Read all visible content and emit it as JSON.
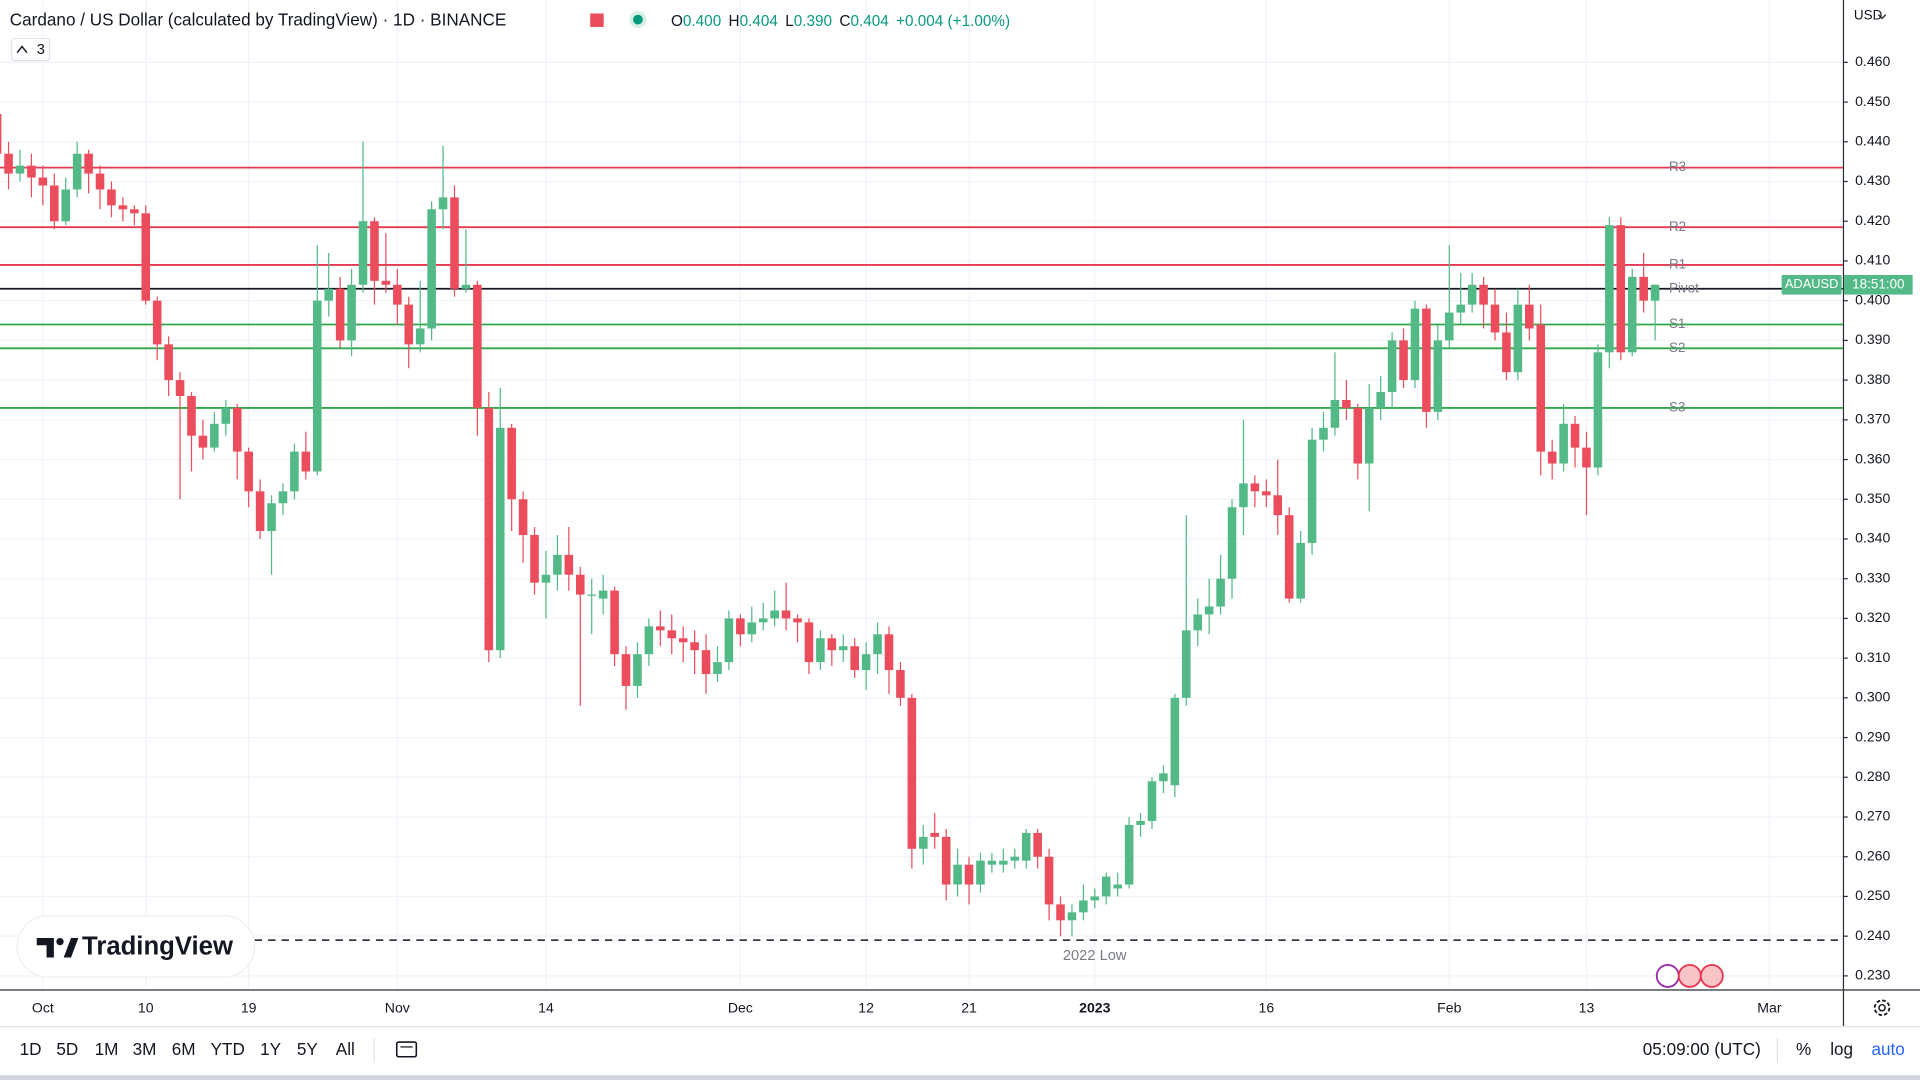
{
  "chart_data": {
    "type": "candlestick",
    "title": "Cardano / US Dollar (calculated by TradingView) · 1D · BINANCE",
    "currency": "USD",
    "symbol_tag": "ADAUSD",
    "countdown": "18:51:00",
    "up_color": "#53b987",
    "down_color": "#eb4d5c",
    "grid": true,
    "categories": [
      null,
      null,
      null,
      null,
      "Oct",
      null,
      null,
      null,
      null,
      null,
      null,
      null,
      null,
      "10",
      null,
      null,
      null,
      null,
      null,
      null,
      null,
      null,
      "19",
      null,
      null,
      null,
      null,
      null,
      null,
      null,
      null,
      null,
      null,
      null,
      null,
      "Nov",
      null,
      null,
      null,
      null,
      null,
      null,
      null,
      null,
      null,
      null,
      null,
      null,
      "14",
      null,
      null,
      null,
      null,
      null,
      null,
      null,
      null,
      null,
      null,
      null,
      null,
      null,
      null,
      null,
      null,
      "Dec",
      null,
      null,
      null,
      null,
      null,
      null,
      null,
      null,
      null,
      null,
      "12",
      null,
      null,
      null,
      null,
      null,
      null,
      null,
      null,
      "21",
      null,
      null,
      null,
      null,
      null,
      null,
      null,
      null,
      null,
      null,
      "2023",
      null,
      null,
      null,
      null,
      null,
      null,
      null,
      null,
      null,
      null,
      null,
      null,
      null,
      null,
      "16",
      null,
      null,
      null,
      null,
      null,
      null,
      null,
      null,
      null,
      null,
      null,
      null,
      null,
      null,
      null,
      "Feb",
      null,
      null,
      null,
      null,
      null,
      null,
      null,
      null,
      null,
      null,
      null,
      "13",
      null,
      null,
      null,
      null,
      null,
      null,
      null,
      null,
      null,
      null,
      null,
      null,
      null,
      null,
      null,
      "Mar"
    ],
    "open": [
      0.447,
      0.437,
      0.432,
      0.434,
      0.431,
      0.429,
      0.42,
      0.428,
      0.437,
      0.432,
      0.428,
      0.424,
      0.423,
      0.422,
      0.4,
      0.389,
      0.38,
      0.376,
      0.366,
      0.363,
      0.369,
      0.373,
      0.362,
      0.352,
      0.342,
      0.349,
      0.352,
      0.362,
      0.357,
      0.4,
      0.403,
      0.39,
      0.404,
      0.42,
      0.405,
      0.404,
      0.399,
      0.389,
      0.393,
      0.423,
      0.426,
      0.403,
      0.404,
      0.373,
      0.312,
      0.368,
      0.35,
      0.341,
      0.329,
      0.331,
      0.336,
      0.331,
      0.326,
      0.325,
      0.327,
      0.311,
      0.303,
      0.311,
      0.318,
      0.317,
      0.315,
      0.314,
      0.312,
      0.306,
      0.309,
      0.32,
      0.316,
      0.319,
      0.32,
      0.322,
      0.32,
      0.319,
      0.309,
      0.315,
      0.312,
      0.313,
      0.307,
      0.311,
      0.316,
      0.307,
      0.3,
      0.262,
      0.266,
      0.265,
      0.253,
      0.258,
      0.253,
      0.258,
      0.258,
      0.259,
      0.259,
      0.266,
      0.26,
      0.248,
      0.244,
      0.246,
      0.249,
      0.25,
      0.252,
      0.253,
      0.268,
      0.269,
      0.279,
      0.278,
      0.3,
      0.317,
      0.321,
      0.323,
      0.33,
      0.348,
      0.354,
      0.352,
      0.351,
      0.346,
      0.325,
      0.339,
      0.365,
      0.368,
      0.375,
      0.373,
      0.359,
      0.373,
      0.377,
      0.39,
      0.38,
      0.398,
      0.372,
      0.39,
      0.397,
      0.399,
      0.404,
      0.399,
      0.392,
      0.382,
      0.399,
      0.394,
      0.362,
      0.359,
      0.369,
      0.363,
      0.358,
      0.387,
      0.419,
      0.387,
      0.406,
      0.4,
      null,
      null,
      null,
      null,
      null,
      null,
      null,
      null,
      null,
      null
    ],
    "high": [
      0.448,
      0.44,
      0.438,
      0.437,
      0.434,
      0.432,
      0.431,
      0.44,
      0.438,
      0.434,
      0.43,
      0.426,
      0.424,
      0.424,
      0.401,
      0.391,
      0.382,
      0.377,
      0.37,
      0.372,
      0.375,
      0.374,
      0.363,
      0.355,
      0.351,
      0.354,
      0.364,
      0.367,
      0.414,
      0.412,
      0.406,
      0.408,
      0.44,
      0.421,
      0.417,
      0.408,
      0.401,
      0.405,
      0.425,
      0.439,
      0.429,
      0.418,
      0.405,
      0.377,
      0.378,
      0.369,
      0.352,
      0.343,
      0.337,
      0.341,
      0.343,
      0.333,
      0.33,
      0.331,
      0.328,
      0.313,
      0.314,
      0.32,
      0.322,
      0.321,
      0.318,
      0.317,
      0.316,
      0.313,
      0.322,
      0.321,
      0.323,
      0.324,
      0.327,
      0.329,
      0.321,
      0.32,
      0.317,
      0.316,
      0.316,
      0.315,
      0.314,
      0.319,
      0.318,
      0.309,
      0.301,
      0.268,
      0.271,
      0.267,
      0.262,
      0.26,
      0.261,
      0.261,
      0.262,
      0.262,
      0.267,
      0.267,
      0.262,
      0.25,
      0.248,
      0.253,
      0.252,
      0.256,
      0.256,
      0.27,
      0.271,
      0.28,
      0.283,
      0.301,
      0.346,
      0.325,
      0.33,
      0.336,
      0.35,
      0.37,
      0.356,
      0.355,
      0.36,
      0.348,
      0.342,
      0.368,
      0.372,
      0.387,
      0.38,
      0.374,
      0.379,
      0.381,
      0.392,
      0.393,
      0.4,
      0.399,
      0.394,
      0.414,
      0.407,
      0.407,
      0.406,
      0.403,
      0.397,
      0.403,
      0.404,
      0.399,
      0.365,
      0.374,
      0.371,
      0.367,
      0.389,
      0.421,
      0.421,
      0.408,
      0.412,
      0.404,
      null,
      null,
      null,
      null,
      null,
      null,
      null,
      null,
      null,
      null
    ],
    "low": [
      0.433,
      0.428,
      0.43,
      0.426,
      0.424,
      0.418,
      0.419,
      0.426,
      0.427,
      0.423,
      0.421,
      0.42,
      0.419,
      0.399,
      0.385,
      0.376,
      0.35,
      0.357,
      0.36,
      0.362,
      0.366,
      0.355,
      0.348,
      0.34,
      0.331,
      0.346,
      0.35,
      0.355,
      0.356,
      0.396,
      0.388,
      0.386,
      0.402,
      0.399,
      0.402,
      0.394,
      0.383,
      0.387,
      0.39,
      0.418,
      0.401,
      0.402,
      0.366,
      0.309,
      0.31,
      0.342,
      0.334,
      0.326,
      0.32,
      0.327,
      0.327,
      0.298,
      0.316,
      0.321,
      0.308,
      0.297,
      0.3,
      0.308,
      0.313,
      0.311,
      0.309,
      0.306,
      0.301,
      0.304,
      0.307,
      0.313,
      0.314,
      0.317,
      0.318,
      0.317,
      0.314,
      0.306,
      0.307,
      0.308,
      0.309,
      0.305,
      0.302,
      0.306,
      0.301,
      0.298,
      0.257,
      0.258,
      0.262,
      0.249,
      0.25,
      0.248,
      0.251,
      0.256,
      0.256,
      0.257,
      0.257,
      0.257,
      0.244,
      0.24,
      0.24,
      0.244,
      0.247,
      0.248,
      0.25,
      0.252,
      0.265,
      0.267,
      0.276,
      0.275,
      0.298,
      0.313,
      0.316,
      0.321,
      0.325,
      0.341,
      0.348,
      0.348,
      0.341,
      0.324,
      0.324,
      0.336,
      0.362,
      0.366,
      0.37,
      0.355,
      0.347,
      0.37,
      0.373,
      0.378,
      0.378,
      0.368,
      0.37,
      0.388,
      0.394,
      0.397,
      0.393,
      0.39,
      0.38,
      0.38,
      0.39,
      0.356,
      0.355,
      0.357,
      0.358,
      0.346,
      0.356,
      0.383,
      0.385,
      0.386,
      0.397,
      0.39,
      null,
      null,
      null,
      null,
      null,
      null,
      null,
      null,
      null,
      null
    ],
    "close": [
      0.437,
      0.432,
      0.434,
      0.431,
      0.429,
      0.42,
      0.428,
      0.437,
      0.432,
      0.428,
      0.424,
      0.423,
      0.422,
      0.4,
      0.389,
      0.38,
      0.376,
      0.366,
      0.363,
      0.369,
      0.373,
      0.362,
      0.352,
      0.342,
      0.349,
      0.352,
      0.362,
      0.357,
      0.4,
      0.403,
      0.39,
      0.404,
      0.42,
      0.405,
      0.404,
      0.399,
      0.389,
      0.393,
      0.423,
      0.426,
      0.403,
      0.404,
      0.373,
      0.312,
      0.368,
      0.35,
      0.341,
      0.329,
      0.331,
      0.336,
      0.331,
      0.326,
      0.326,
      0.327,
      0.311,
      0.303,
      0.311,
      0.318,
      0.317,
      0.315,
      0.314,
      0.312,
      0.306,
      0.309,
      0.32,
      0.316,
      0.319,
      0.32,
      0.322,
      0.32,
      0.319,
      0.309,
      0.315,
      0.312,
      0.313,
      0.307,
      0.311,
      0.316,
      0.307,
      0.3,
      0.262,
      0.265,
      0.265,
      0.253,
      0.258,
      0.253,
      0.259,
      0.259,
      0.259,
      0.26,
      0.266,
      0.26,
      0.248,
      0.244,
      0.246,
      0.249,
      0.25,
      0.255,
      0.253,
      0.268,
      0.269,
      0.279,
      0.281,
      0.3,
      0.317,
      0.321,
      0.323,
      0.33,
      0.348,
      0.354,
      0.352,
      0.351,
      0.346,
      0.325,
      0.339,
      0.365,
      0.368,
      0.375,
      0.373,
      0.359,
      0.373,
      0.377,
      0.39,
      0.38,
      0.398,
      0.372,
      0.39,
      0.397,
      0.399,
      0.404,
      0.399,
      0.392,
      0.382,
      0.399,
      0.393,
      0.362,
      0.359,
      0.369,
      0.363,
      0.358,
      0.387,
      0.419,
      0.387,
      0.406,
      0.4,
      0.404,
      null,
      null,
      null,
      null,
      null,
      null,
      null,
      null,
      null,
      null
    ],
    "ylim": [
      0.2266,
      0.4757
    ],
    "yticks": [
      {
        "value": 0.23,
        "label": "0.230"
      },
      {
        "value": 0.24,
        "label": "0.240"
      },
      {
        "value": 0.25,
        "label": "0.250"
      },
      {
        "value": 0.26,
        "label": "0.260"
      },
      {
        "value": 0.27,
        "label": "0.270"
      },
      {
        "value": 0.28,
        "label": "0.280"
      },
      {
        "value": 0.29,
        "label": "0.290"
      },
      {
        "value": 0.3,
        "label": "0.300"
      },
      {
        "value": 0.31,
        "label": "0.310"
      },
      {
        "value": 0.32,
        "label": "0.320"
      },
      {
        "value": 0.33,
        "label": "0.330"
      },
      {
        "value": 0.34,
        "label": "0.340"
      },
      {
        "value": 0.35,
        "label": "0.350"
      },
      {
        "value": 0.36,
        "label": "0.360"
      },
      {
        "value": 0.37,
        "label": "0.370"
      },
      {
        "value": 0.38,
        "label": "0.380"
      },
      {
        "value": 0.39,
        "label": "0.390"
      },
      {
        "value": 0.4,
        "label": "0.400"
      },
      {
        "value": 0.41,
        "label": "0.410"
      },
      {
        "value": 0.42,
        "label": "0.420"
      },
      {
        "value": 0.43,
        "label": "0.430"
      },
      {
        "value": 0.44,
        "label": "0.440"
      },
      {
        "value": 0.45,
        "label": "0.450"
      },
      {
        "value": 0.46,
        "label": "0.460"
      }
    ],
    "levels": [
      {
        "name": "R3",
        "value": 0.4335,
        "color": "#e8384f"
      },
      {
        "name": "R2",
        "value": 0.4185,
        "color": "#e8384f"
      },
      {
        "name": "R1",
        "value": 0.409,
        "color": "#e8384f"
      },
      {
        "name": "Pivot",
        "value": 0.403,
        "color": "#131722"
      },
      {
        "name": "S1",
        "value": 0.394,
        "color": "#2ea84a"
      },
      {
        "name": "S2",
        "value": 0.388,
        "color": "#2ea84a"
      },
      {
        "name": "S3",
        "value": 0.373,
        "color": "#2ea84a"
      }
    ],
    "low_line": {
      "name": "2022 Low",
      "value": 0.239,
      "color": "#131722"
    }
  },
  "ui": {
    "legend": [
      {
        "label": "O",
        "value": "0.400"
      },
      {
        "label": "H",
        "value": "0.404"
      },
      {
        "label": "L",
        "value": "0.390"
      },
      {
        "label": "C",
        "value": "0.404"
      }
    ],
    "change": "+0.004 (+1.00%)",
    "indicator_count": "3",
    "watermark": "TradingView",
    "timeframes": [
      "1D",
      "5D",
      "1M",
      "3M",
      "6M",
      "YTD",
      "1Y",
      "5Y",
      "All"
    ],
    "clock": "05:09:00 (UTC)",
    "scale_buttons": [
      "%",
      "log",
      "auto"
    ]
  }
}
